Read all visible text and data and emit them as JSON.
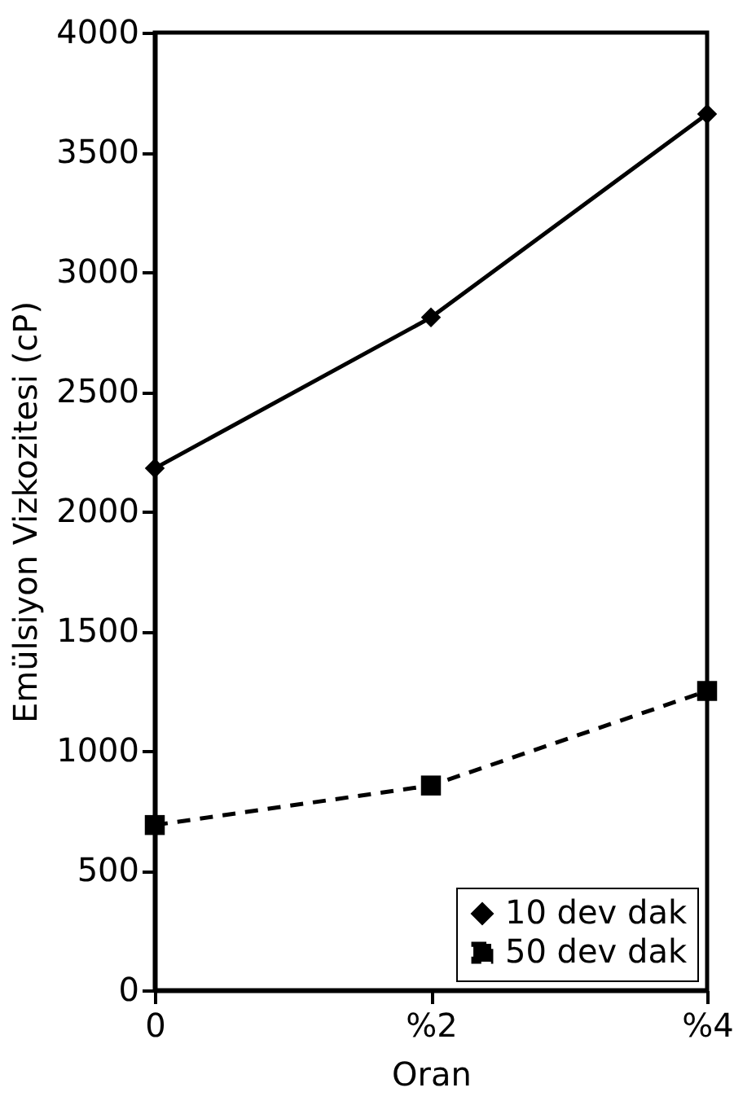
{
  "chart_data": {
    "type": "line",
    "xlabel": "Oran",
    "ylabel": "Emülsiyon Vizkozitesi (cP)",
    "categories": [
      "0",
      "%2",
      "%4"
    ],
    "series": [
      {
        "name": "10 dev dak",
        "color": "#000000",
        "values": [
          2180,
          2810,
          3660
        ],
        "marker": "diamond",
        "line_style": "solid"
      },
      {
        "name": "50 dev dak",
        "color": "#000000",
        "values": [
          690,
          855,
          1250
        ],
        "marker": "square",
        "line_style": "dashed"
      }
    ],
    "ylim": [
      0,
      4000
    ],
    "yticks": [
      0,
      500,
      1000,
      1500,
      2000,
      2500,
      3000,
      3500,
      4000
    ],
    "grid": false,
    "legend": "bottom right"
  }
}
